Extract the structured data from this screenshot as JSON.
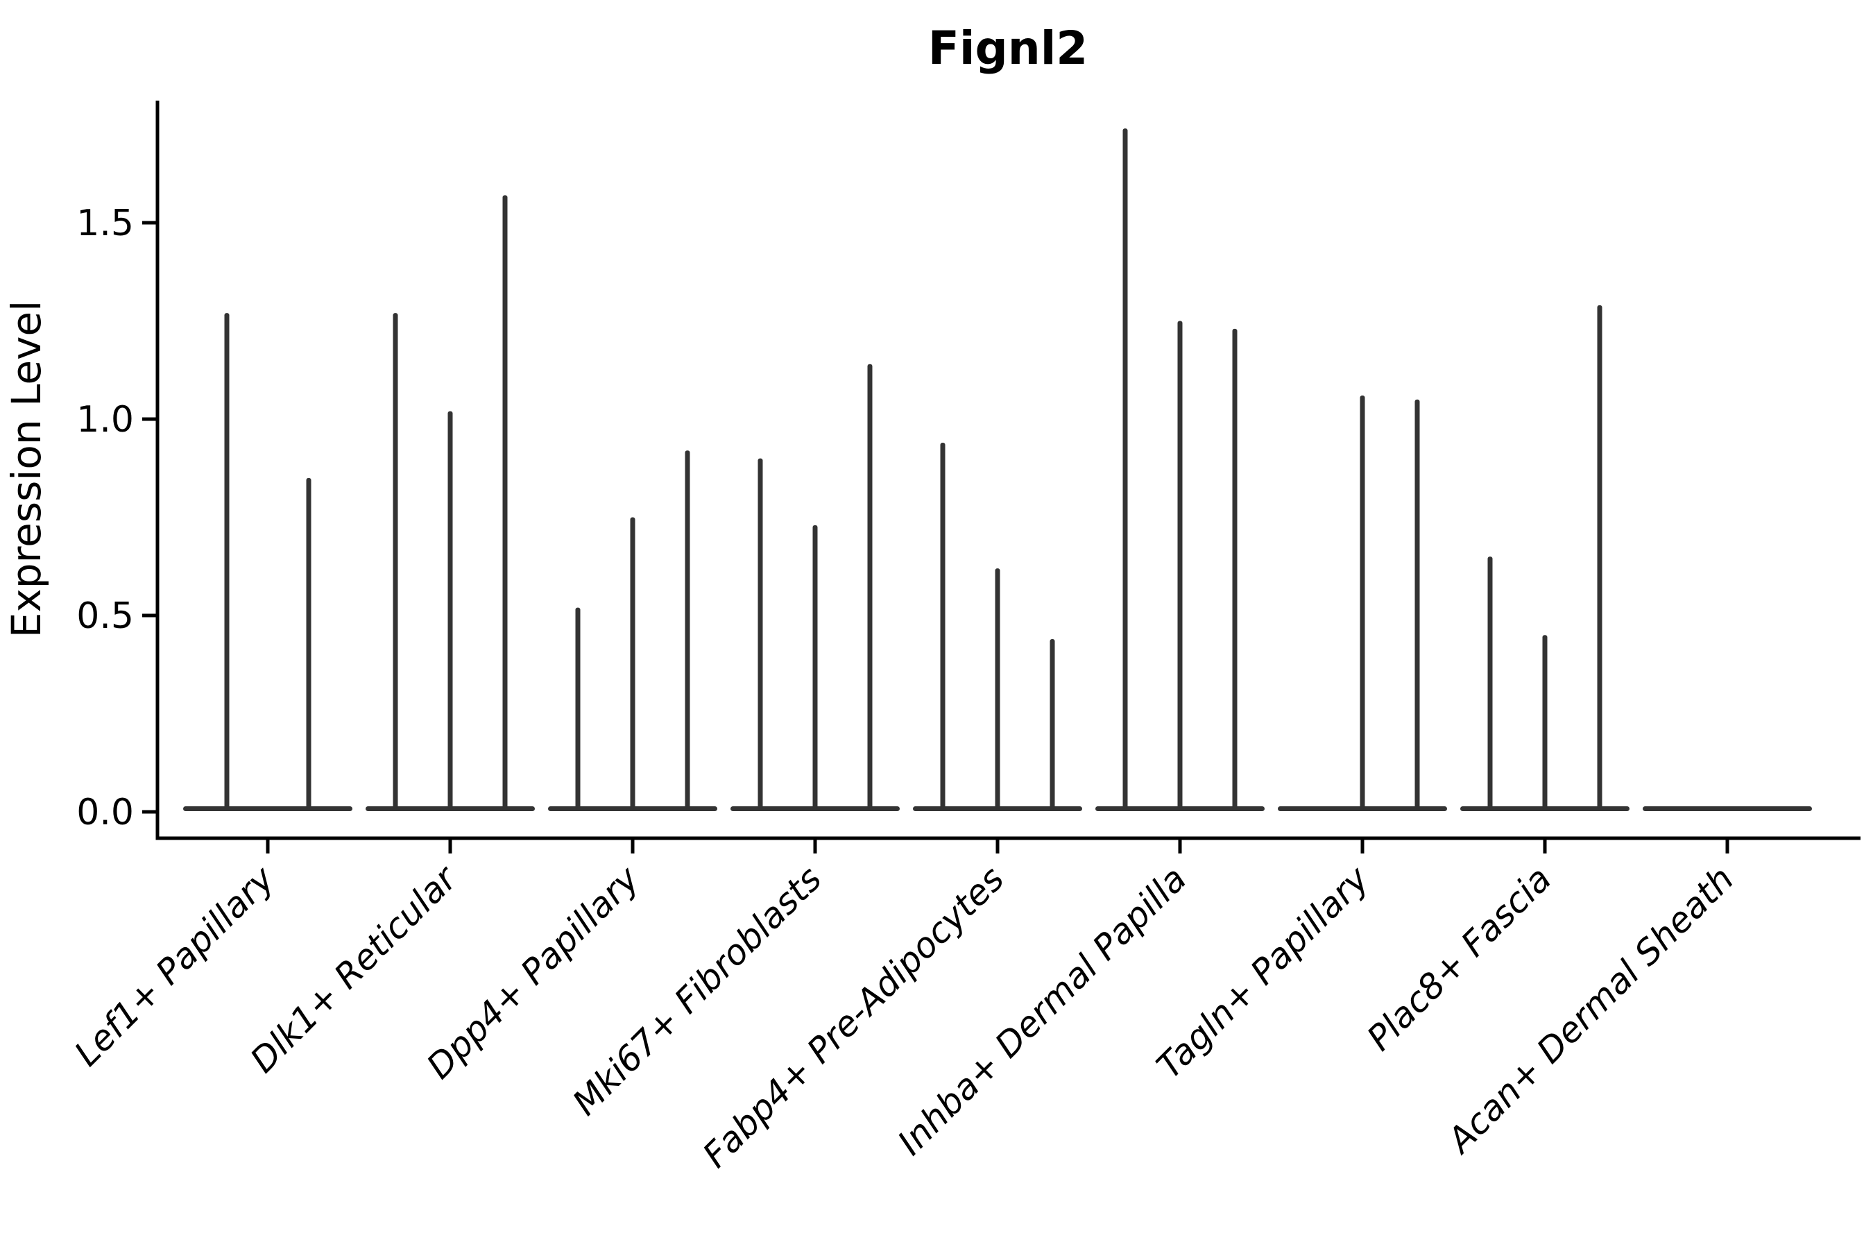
{
  "figure": {
    "background": "#ffffff"
  },
  "chart_data": {
    "type": "violin",
    "title": "Fignl2",
    "xlabel": "",
    "ylabel": "Expression Level",
    "grid": false,
    "legend": "none",
    "axis_color": "#000000",
    "violin_color": "#333333",
    "ytick_labels": [
      "0.0",
      "0.5",
      "1.0",
      "1.5"
    ],
    "ytick_values": [
      0.0,
      0.5,
      1.0,
      1.5
    ],
    "ylim": [
      -0.07,
      1.81
    ],
    "categories": [
      "Lef1+ Papillary",
      "Dlk1+ Reticular",
      "Dpp4+ Papillary",
      "Mki67+ Fibroblasts",
      "Fabp4+ Pre-Adipocytes",
      "Inhba+ Dermal Papilla",
      "Tagln+ Papillary",
      "Plac8+ Fascia",
      "Acan+ Dermal Sheath"
    ],
    "groups": [
      {
        "category": "Lef1+ Papillary",
        "violins": [
          {
            "offset": -59,
            "max": 1.27
          },
          {
            "offset": 59,
            "max": 0.85
          }
        ]
      },
      {
        "category": "Dlk1+ Reticular",
        "violins": [
          {
            "offset": -79,
            "max": 1.27
          },
          {
            "offset": 0,
            "max": 1.02
          },
          {
            "offset": 79,
            "max": 1.57
          }
        ]
      },
      {
        "category": "Dpp4+ Papillary",
        "violins": [
          {
            "offset": -79,
            "max": 0.52
          },
          {
            "offset": 0,
            "max": 0.75
          },
          {
            "offset": 79,
            "max": 0.92
          }
        ]
      },
      {
        "category": "Mki67+ Fibroblasts",
        "violins": [
          {
            "offset": -79,
            "max": 0.9
          },
          {
            "offset": 0,
            "max": 0.73
          },
          {
            "offset": 79,
            "max": 1.14
          }
        ]
      },
      {
        "category": "Fabp4+ Pre-Adipocytes",
        "violins": [
          {
            "offset": -79,
            "max": 0.94
          },
          {
            "offset": 0,
            "max": 0.62
          },
          {
            "offset": 79,
            "max": 0.44
          }
        ]
      },
      {
        "category": "Inhba+ Dermal Papilla",
        "violins": [
          {
            "offset": -79,
            "max": 1.74
          },
          {
            "offset": 0,
            "max": 1.25
          },
          {
            "offset": 79,
            "max": 1.23
          }
        ]
      },
      {
        "category": "Tagln+ Papillary",
        "violins": [
          {
            "offset": -79,
            "max": 0.0
          },
          {
            "offset": 0,
            "max": 1.06
          },
          {
            "offset": 79,
            "max": 1.05
          }
        ]
      },
      {
        "category": "Plac8+ Fascia",
        "violins": [
          {
            "offset": -79,
            "max": 0.65
          },
          {
            "offset": 0,
            "max": 0.45
          },
          {
            "offset": 79,
            "max": 1.29
          }
        ]
      },
      {
        "category": "Acan+ Dermal Sheath",
        "violins": [
          {
            "offset": -79,
            "max": 0.0
          },
          {
            "offset": 0,
            "max": 0.0
          },
          {
            "offset": 79,
            "max": 0.0
          }
        ]
      }
    ]
  }
}
